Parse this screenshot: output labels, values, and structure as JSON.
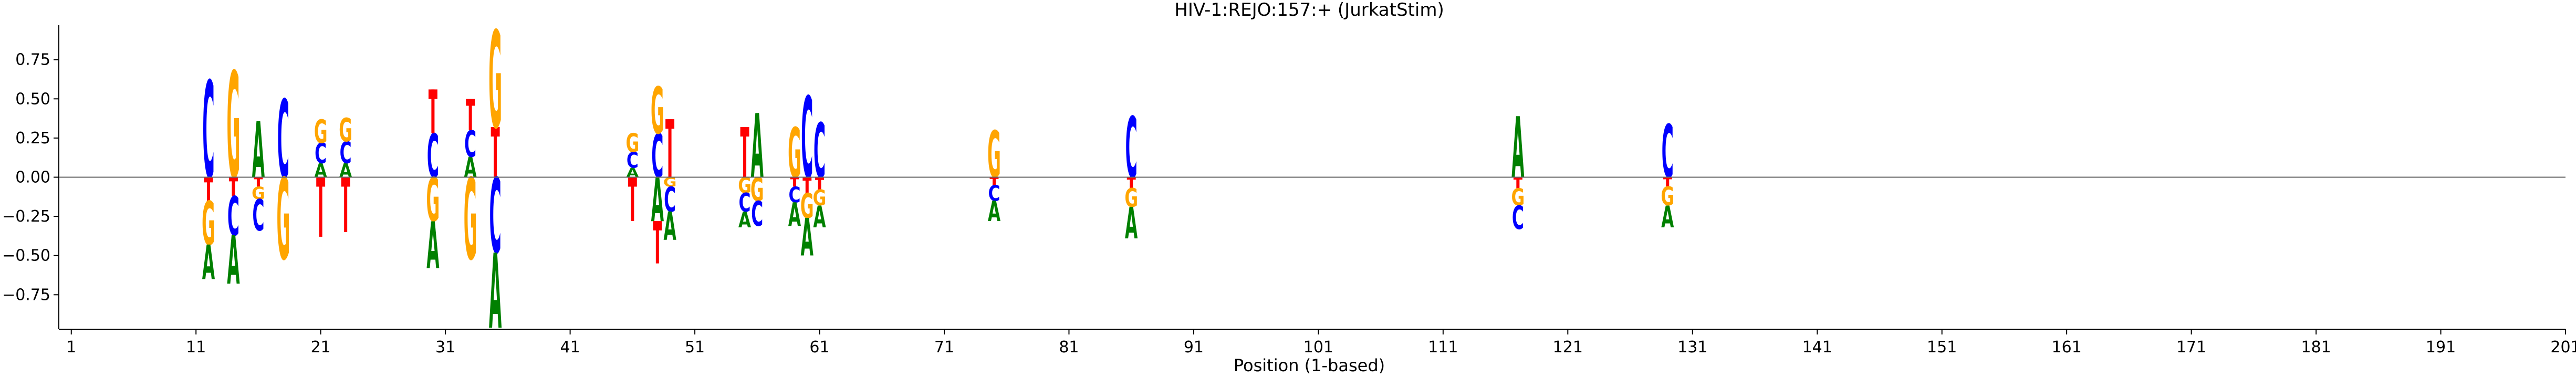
{
  "chart_data": {
    "type": "sequence-logo",
    "title": "HIV-1:REJO:157:+  (JurkatStim)",
    "xlabel": "Position (1-based)",
    "ylabel": "",
    "xlim": [
      0,
      201
    ],
    "ylim": [
      -0.97,
      0.97
    ],
    "xticks": [
      1,
      11,
      21,
      31,
      41,
      51,
      61,
      71,
      81,
      91,
      101,
      111,
      121,
      131,
      141,
      151,
      161,
      171,
      181,
      191,
      201
    ],
    "yticks": [
      -0.75,
      -0.5,
      -0.25,
      0.0,
      0.25,
      0.5,
      0.75
    ],
    "ytick_labels": [
      "−0.75",
      "−0.50",
      "−0.25",
      "0.00",
      "0.25",
      "0.50",
      "0.75"
    ],
    "letter_colors": {
      "A": "#008000",
      "C": "#0000ff",
      "G": "#ffa500",
      "T": "#ff0000"
    },
    "positions": [
      {
        "pos": 12,
        "up": [
          [
            "C",
            0.62
          ]
        ],
        "down": [
          [
            "T",
            0.15
          ],
          [
            "G",
            0.28
          ],
          [
            "A",
            0.22
          ]
        ]
      },
      {
        "pos": 14,
        "up": [
          [
            "G",
            0.68
          ]
        ],
        "down": [
          [
            "T",
            0.12
          ],
          [
            "C",
            0.25
          ],
          [
            "A",
            0.31
          ]
        ]
      },
      {
        "pos": 16,
        "up": [
          [
            "A",
            0.36
          ]
        ],
        "down": [
          [
            "T",
            0.06
          ],
          [
            "G",
            0.08
          ],
          [
            "C",
            0.2
          ]
        ]
      },
      {
        "pos": 18,
        "up": [
          [
            "C",
            0.5
          ]
        ],
        "down": [
          [
            "G",
            0.52
          ]
        ]
      },
      {
        "pos": 21,
        "up": [
          [
            "A",
            0.09
          ],
          [
            "C",
            0.13
          ],
          [
            "G",
            0.15
          ]
        ],
        "down": [
          [
            "T",
            0.38
          ]
        ]
      },
      {
        "pos": 23,
        "up": [
          [
            "A",
            0.09
          ],
          [
            "C",
            0.14
          ],
          [
            "G",
            0.15
          ]
        ],
        "down": [
          [
            "T",
            0.35
          ]
        ]
      },
      {
        "pos": 30,
        "up": [
          [
            "C",
            0.28
          ],
          [
            "T",
            0.28
          ]
        ],
        "down": [
          [
            "G",
            0.28
          ],
          [
            "A",
            0.3
          ]
        ]
      },
      {
        "pos": 33,
        "up": [
          [
            "A",
            0.13
          ],
          [
            "C",
            0.17
          ],
          [
            "T",
            0.2
          ]
        ],
        "down": [
          [
            "G",
            0.52
          ]
        ]
      },
      {
        "pos": 35,
        "up": [
          [
            "T",
            0.32
          ],
          [
            "G",
            0.62
          ]
        ],
        "down": [
          [
            "C",
            0.48
          ],
          [
            "A",
            0.48
          ]
        ]
      },
      {
        "pos": 46,
        "up": [
          [
            "A",
            0.06
          ],
          [
            "C",
            0.1
          ],
          [
            "G",
            0.12
          ]
        ],
        "down": [
          [
            "T",
            0.28
          ]
        ]
      },
      {
        "pos": 48,
        "up": [
          [
            "C",
            0.28
          ],
          [
            "G",
            0.3
          ]
        ],
        "down": [
          [
            "A",
            0.28
          ],
          [
            "T",
            0.27
          ]
        ]
      },
      {
        "pos": 49,
        "up": [
          [
            "T",
            0.37
          ]
        ],
        "down": [
          [
            "G",
            0.06
          ],
          [
            "C",
            0.16
          ],
          [
            "A",
            0.18
          ]
        ]
      },
      {
        "pos": 55,
        "up": [
          [
            "T",
            0.32
          ]
        ],
        "down": [
          [
            "G",
            0.1
          ],
          [
            "C",
            0.12
          ],
          [
            "A",
            0.1
          ]
        ]
      },
      {
        "pos": 56,
        "up": [
          [
            "A",
            0.41
          ]
        ],
        "down": [
          [
            "G",
            0.15
          ],
          [
            "C",
            0.16
          ]
        ]
      },
      {
        "pos": 59,
        "up": [
          [
            "G",
            0.32
          ]
        ],
        "down": [
          [
            "T",
            0.06
          ],
          [
            "C",
            0.1
          ],
          [
            "A",
            0.15
          ]
        ]
      },
      {
        "pos": 60,
        "up": [
          [
            "C",
            0.52
          ]
        ],
        "down": [
          [
            "T",
            0.1
          ],
          [
            "G",
            0.16
          ],
          [
            "A",
            0.24
          ]
        ]
      },
      {
        "pos": 61,
        "up": [
          [
            "C",
            0.35
          ]
        ],
        "down": [
          [
            "T",
            0.08
          ],
          [
            "G",
            0.1
          ],
          [
            "A",
            0.14
          ]
        ]
      },
      {
        "pos": 75,
        "up": [
          [
            "G",
            0.3
          ]
        ],
        "down": [
          [
            "T",
            0.05
          ],
          [
            "C",
            0.1
          ],
          [
            "A",
            0.13
          ]
        ]
      },
      {
        "pos": 86,
        "up": [
          [
            "C",
            0.39
          ]
        ],
        "down": [
          [
            "T",
            0.07
          ],
          [
            "G",
            0.12
          ],
          [
            "A",
            0.2
          ]
        ]
      },
      {
        "pos": 117,
        "up": [
          [
            "A",
            0.39
          ]
        ],
        "down": [
          [
            "T",
            0.07
          ],
          [
            "G",
            0.11
          ],
          [
            "C",
            0.15
          ]
        ]
      },
      {
        "pos": 129,
        "up": [
          [
            "C",
            0.34
          ]
        ],
        "down": [
          [
            "T",
            0.06
          ],
          [
            "G",
            0.12
          ],
          [
            "A",
            0.14
          ]
        ]
      }
    ]
  }
}
